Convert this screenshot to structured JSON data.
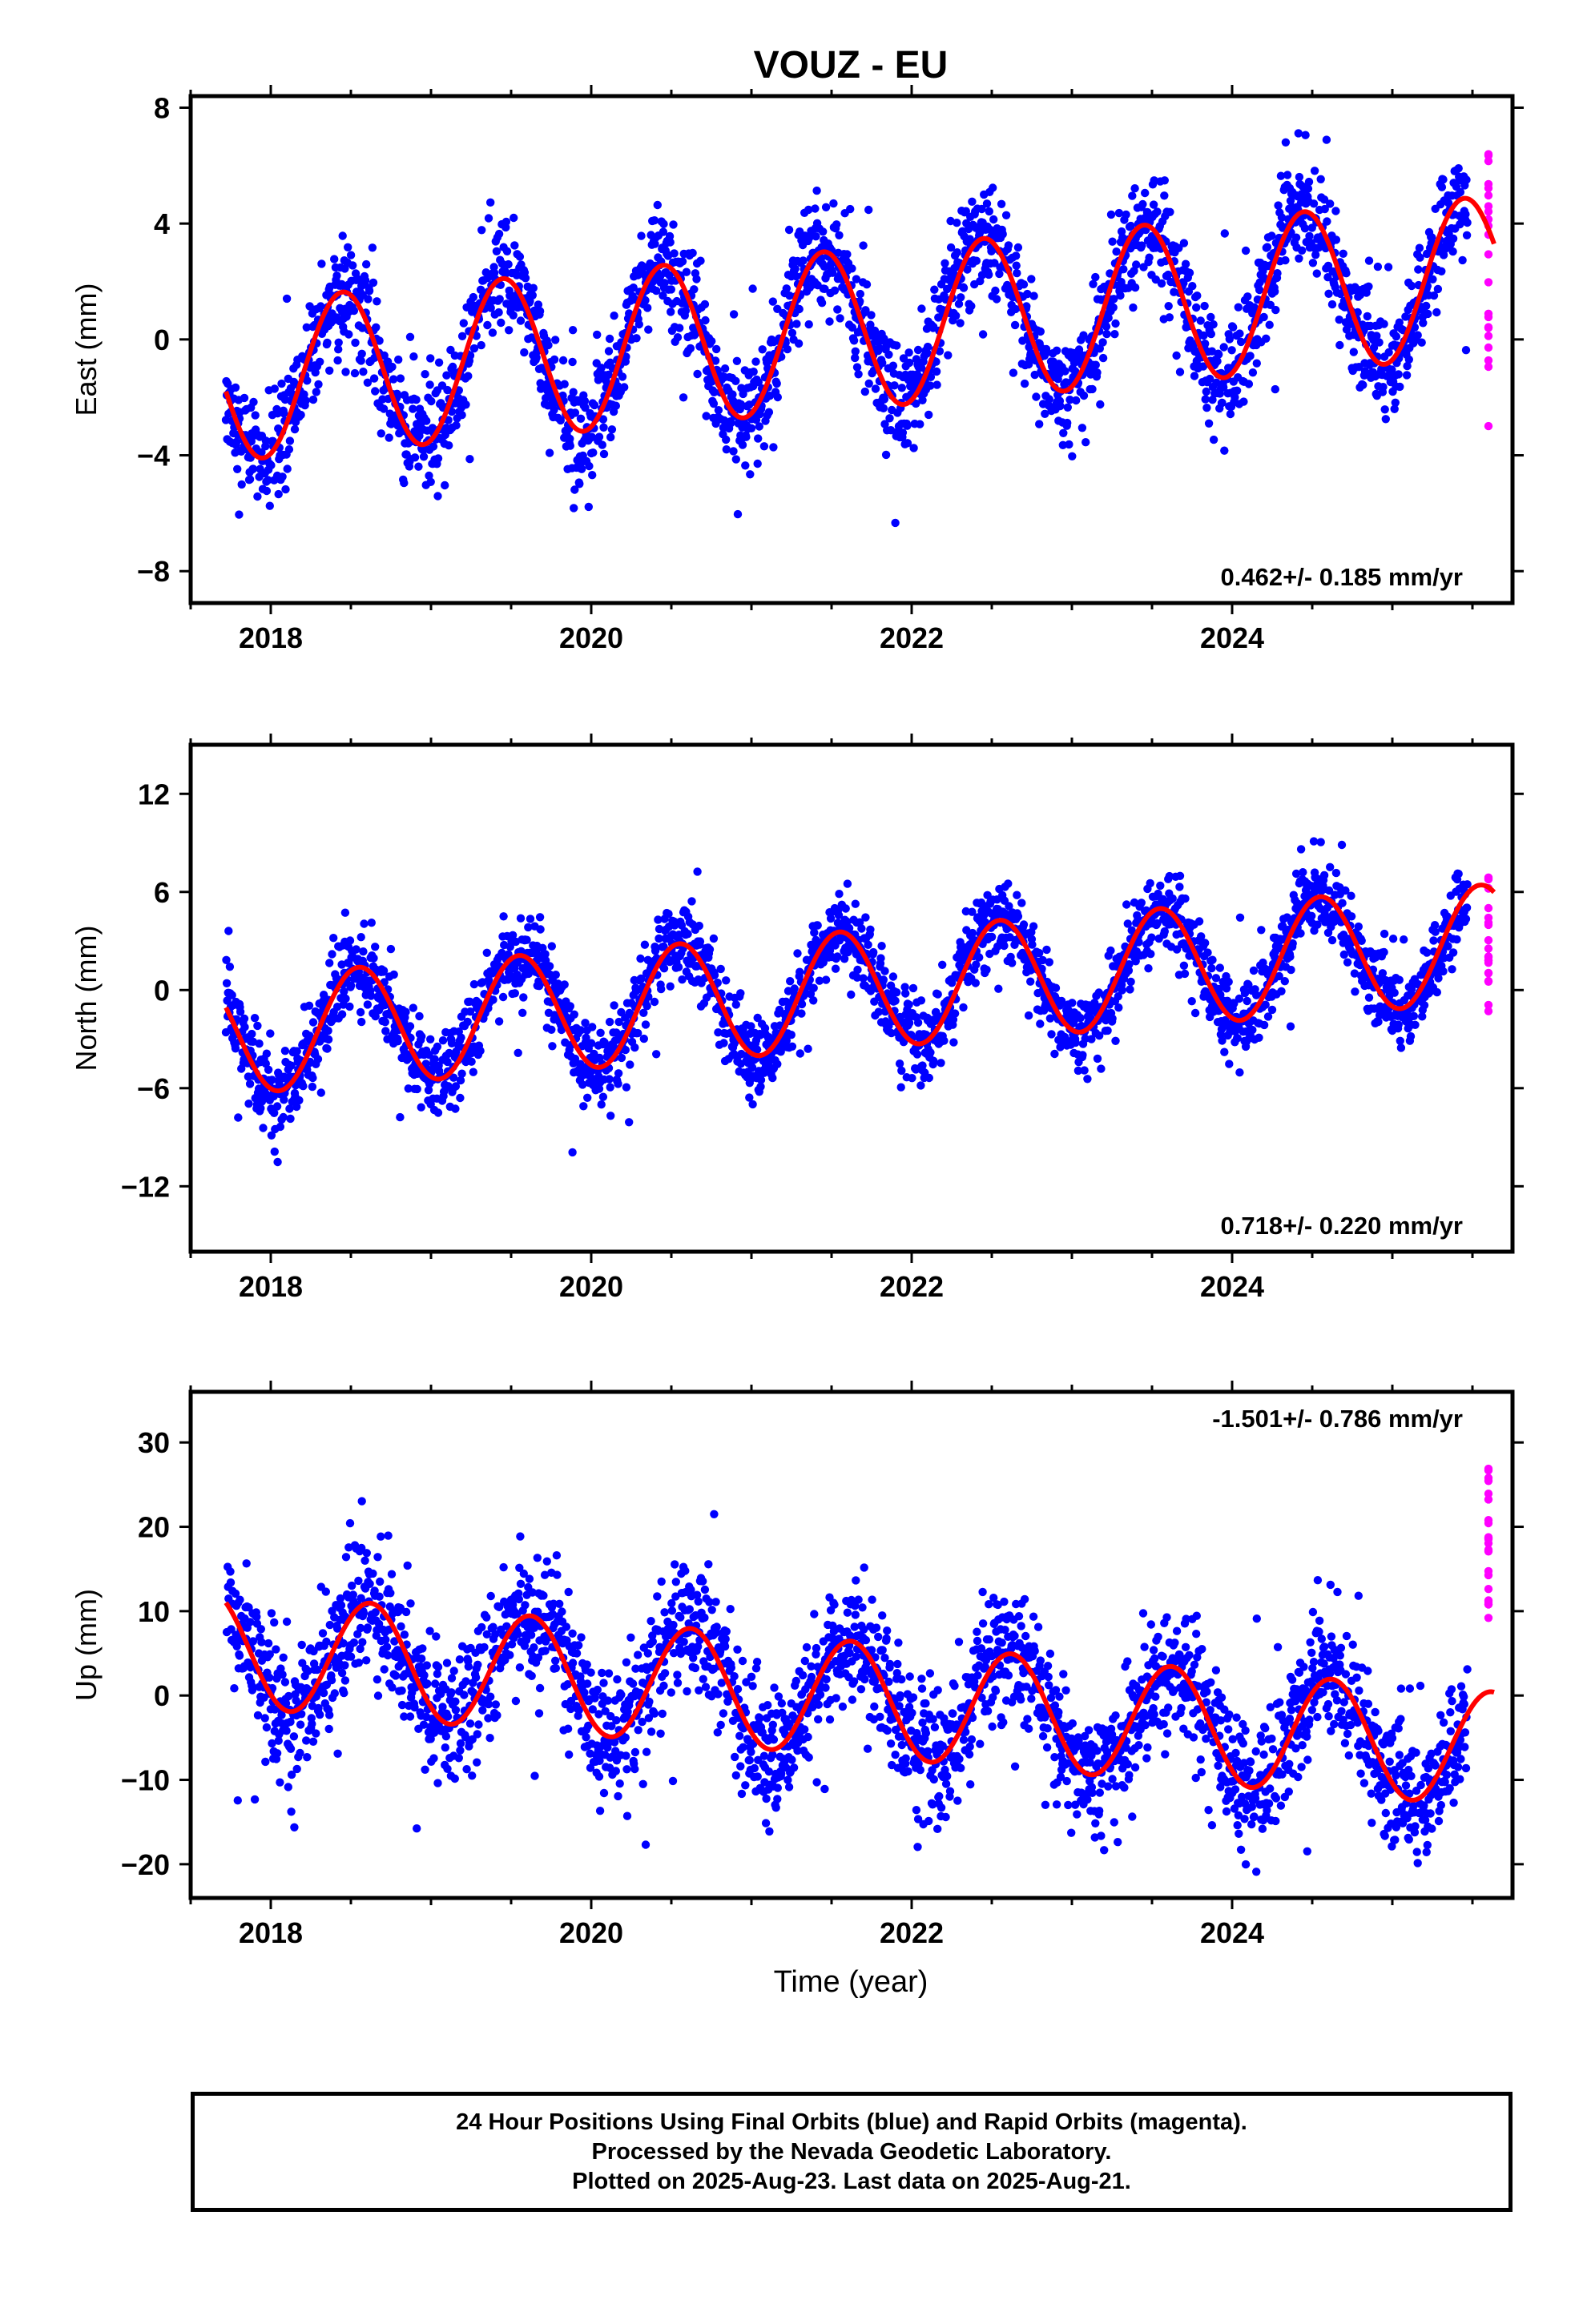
{
  "title": "VOUZ - EU",
  "xlabel": "Time (year)",
  "footer": {
    "line1": "24 Hour Positions Using Final Orbits (blue) and Rapid Orbits (magenta).",
    "line2": "Processed by the Nevada Geodetic Laboratory.",
    "line3": "Plotted on 2025-Aug-23. Last data on 2025-Aug-21."
  },
  "colors": {
    "final": "#0000ff",
    "rapid": "#ff00ff",
    "fit": "#ff0000",
    "frame": "#000000"
  },
  "chart_data": [
    {
      "type": "scatter",
      "panel": "east",
      "ylabel": "East (mm)",
      "xlim": [
        2017.5,
        2025.75
      ],
      "ylim": [
        -9.1,
        8.4
      ],
      "xticks": [
        2018,
        2020,
        2022,
        2024
      ],
      "yticks": [
        -8,
        -4,
        0,
        4,
        8
      ],
      "trend": {
        "rate": 0.462,
        "sigma": 0.185,
        "label": "0.462+/- 0.185 mm/yr",
        "position": "bottom-right"
      },
      "fit": {
        "offset": -1.45,
        "rate": 0.462,
        "annual_amplitude": 2.75,
        "peak_phase_year": 0.45
      },
      "final_data": {
        "x_start": 2017.72,
        "x_end": 2025.47,
        "step_days": 1,
        "scatter": 0.95
      },
      "rapid_data": {
        "x_start": 2025.47,
        "x_end": 2025.64,
        "y_range": [
          -3,
          6.7
        ]
      }
    },
    {
      "type": "scatter",
      "panel": "north",
      "ylabel": "North (mm)",
      "xlim": [
        2017.5,
        2025.75
      ],
      "ylim": [
        -16,
        15
      ],
      "xticks": [
        2018,
        2020,
        2022,
        2024
      ],
      "yticks": [
        -12,
        -6,
        0,
        6,
        12
      ],
      "trend": {
        "rate": 0.718,
        "sigma": 0.22,
        "label": "0.718+/- 0.220 mm/yr",
        "position": "bottom-right"
      },
      "fit": {
        "offset": -2.8,
        "rate": 0.718,
        "annual_amplitude": 3.6,
        "peak_phase_year": 0.55
      },
      "final_data": {
        "x_start": 2017.72,
        "x_end": 2025.47,
        "step_days": 1,
        "scatter": 1.2
      },
      "rapid_data": {
        "x_start": 2025.47,
        "x_end": 2025.64,
        "y_range": [
          -1.3,
          7.2
        ]
      }
    },
    {
      "type": "scatter",
      "panel": "up",
      "ylabel": "Up (mm)",
      "xlim": [
        2017.5,
        2025.75
      ],
      "ylim": [
        -24,
        36
      ],
      "xticks": [
        2018,
        2020,
        2022,
        2024
      ],
      "yticks": [
        -20,
        -10,
        0,
        10,
        20,
        30
      ],
      "trend": {
        "rate": -1.501,
        "sigma": 0.786,
        "label": "-1.501+/- 0.786 mm/yr",
        "position": "top-right"
      },
      "fit": {
        "offset": 5.5,
        "rate": -1.501,
        "annual_amplitude": 6.8,
        "peak_phase_year": 0.62
      },
      "final_data": {
        "x_start": 2017.72,
        "x_end": 2025.47,
        "step_days": 1,
        "scatter": 3.8
      },
      "rapid_data": {
        "x_start": 2025.47,
        "x_end": 2025.64,
        "y_range": [
          9,
          29
        ]
      }
    }
  ]
}
